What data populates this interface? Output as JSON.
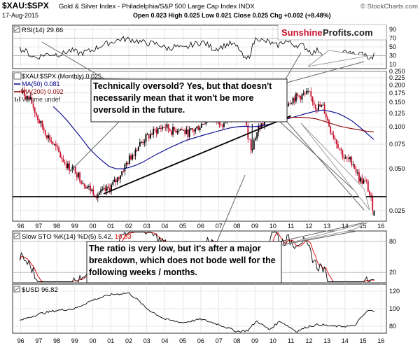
{
  "header": {
    "symbol": "$XAU:$SPX",
    "description": "Gold & Silver Index - Philadelphia/S&P 500 Large Cap Index",
    "exchange": "INDX",
    "watermark": "© StockCharts.com",
    "date": "17-Aug-2015",
    "ohlc": "Open 0.023  High 0.025  Low 0.021  Close 0.025  Chg +0.002 (+8.48%)"
  },
  "logo": {
    "part1": "Sunshine",
    "part2": "Profits.com"
  },
  "rsi_panel": {
    "label": "RSI(14) 29.66",
    "ticks": [
      "90",
      "70",
      "50",
      "30",
      "10"
    ]
  },
  "main_panel": {
    "legend_title": "$XAU:$SPX (Monthly) 0.025",
    "legend_ma50": "MA(50) 0.081",
    "legend_ma200": "MA(200) 0.092",
    "legend_volume": "Volume undef",
    "price_ticks": [
      "0.250",
      "0.225",
      "0.200",
      "0.175",
      "0.150",
      "0.125",
      "0.100",
      "0.075",
      "0.050",
      "0.025"
    ]
  },
  "sto_panel": {
    "label_prefix": "Slow STO %K(14) %D(5)",
    "label_k": "5.42,",
    "label_d": "10.83",
    "ticks": [
      "80",
      "20"
    ]
  },
  "usd_panel": {
    "label": "$USD 96.82",
    "ticks": [
      "120",
      "100",
      "80"
    ]
  },
  "x_axis": {
    "years": [
      "96",
      "97",
      "98",
      "99",
      "00",
      "01",
      "02",
      "03",
      "04",
      "05",
      "06",
      "07",
      "08",
      "09",
      "10",
      "11",
      "12",
      "13",
      "14",
      "15",
      "16"
    ]
  },
  "annotations": {
    "top_callout": "Technically oversold? Yes, but that doesn't necessarily mean that it won't be more oversold in the future.",
    "bottom_callout": "The ratio is very low, but it's after a major breakdown, which does not bode well for the following weeks / months."
  },
  "colors": {
    "ma50": "#00008b",
    "ma200": "#8b0000",
    "candle_up": "#000000",
    "candle_down": "#c8102e",
    "sto_k": "#000000",
    "sto_d": "#e00000",
    "logo_red": "#c8102e"
  },
  "chart_data": {
    "type": "line",
    "title": "$XAU:$SPX",
    "xlabel": "",
    "ylabel": "",
    "scale": "log",
    "ylim": [
      0.021,
      0.25
    ],
    "x": [
      1995.9,
      1996.2,
      1996.6,
      1997.0,
      1997.4,
      1997.8,
      1998.2,
      1998.6,
      1999.0,
      1999.4,
      1999.8,
      2000.2,
      2000.6,
      2000.9,
      2001.3,
      2001.7,
      2002.0,
      2002.4,
      2002.8,
      2003.2,
      2003.6,
      2004.0,
      2004.4,
      2004.8,
      2005.2,
      2005.6,
      2006.0,
      2006.4,
      2006.8,
      2007.2,
      2007.6,
      2008.0,
      2008.4,
      2008.8,
      2009.2,
      2009.6,
      2010.0,
      2010.4,
      2010.8,
      2011.2,
      2011.6,
      2012.0,
      2012.4,
      2012.8,
      2013.2,
      2013.6,
      2014.0,
      2014.4,
      2014.8,
      2015.2,
      2015.6
    ],
    "series": [
      {
        "name": "$XAU:$SPX (Monthly) 0.025",
        "values": [
          0.182,
          0.172,
          0.15,
          0.11,
          0.09,
          0.075,
          0.062,
          0.052,
          0.049,
          0.041,
          0.036,
          0.033,
          0.034,
          0.036,
          0.041,
          0.05,
          0.058,
          0.07,
          0.08,
          0.088,
          0.096,
          0.101,
          0.093,
          0.098,
          0.09,
          0.094,
          0.103,
          0.118,
          0.112,
          0.108,
          0.115,
          0.125,
          0.115,
          0.07,
          0.098,
          0.11,
          0.128,
          0.125,
          0.15,
          0.162,
          0.168,
          0.172,
          0.14,
          0.138,
          0.095,
          0.075,
          0.058,
          0.057,
          0.042,
          0.039,
          0.025
        ]
      },
      {
        "name": "MA(50) 0.081",
        "values": [
          null,
          null,
          null,
          null,
          null,
          0.14,
          0.125,
          0.11,
          0.095,
          0.082,
          0.07,
          0.062,
          0.056,
          0.052,
          0.05,
          0.05,
          0.051,
          0.053,
          0.056,
          0.06,
          0.064,
          0.068,
          0.072,
          0.076,
          0.08,
          0.083,
          0.086,
          0.089,
          0.092,
          0.095,
          0.098,
          0.1,
          0.101,
          0.1,
          0.101,
          0.103,
          0.106,
          0.11,
          0.114,
          0.118,
          0.122,
          0.126,
          0.13,
          0.132,
          0.129,
          0.125,
          0.118,
          0.11,
          0.1,
          0.09,
          0.081
        ]
      },
      {
        "name": "MA(200) 0.092",
        "values": [
          null,
          null,
          null,
          null,
          null,
          null,
          null,
          null,
          null,
          null,
          null,
          null,
          null,
          null,
          null,
          null,
          null,
          null,
          null,
          null,
          null,
          null,
          null,
          null,
          null,
          null,
          null,
          null,
          null,
          null,
          null,
          null,
          null,
          null,
          null,
          null,
          0.112,
          0.114,
          0.116,
          0.117,
          0.117,
          0.116,
          0.114,
          0.11,
          0.106,
          0.102,
          0.099,
          0.097,
          0.095,
          0.093,
          0.092
        ]
      }
    ]
  }
}
